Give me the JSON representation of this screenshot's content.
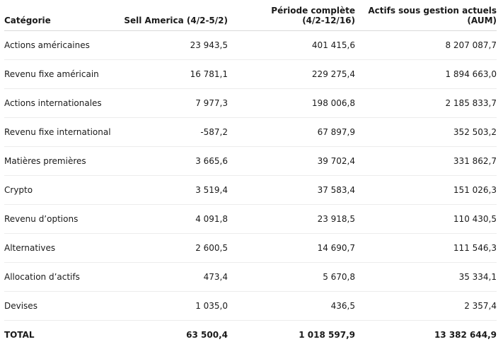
{
  "table": {
    "headers": [
      [
        "Catégorie"
      ],
      [
        "Sell America (4/2-5/2)"
      ],
      [
        "Période complète",
        "(4/2-12/16)"
      ],
      [
        "Actifs sous gestion actuels",
        "(AUM)"
      ]
    ],
    "rows": [
      [
        "Actions américaines",
        "23 943,5",
        "401 415,6",
        "8 207 087,7"
      ],
      [
        "Revenu fixe américain",
        "16 781,1",
        "229 275,4",
        "1 894 663,0"
      ],
      [
        "Actions internationales",
        "7 977,3",
        "198 006,8",
        "2 185 833,7"
      ],
      [
        "Revenu fixe international",
        "-587,2",
        "67 897,9",
        "352 503,2"
      ],
      [
        "Matières premières",
        "3 665,6",
        "39 702,4",
        "331 862,7"
      ],
      [
        "Crypto",
        "3 519,4",
        "37 583,4",
        "151 026,3"
      ],
      [
        "Revenu d’options",
        "4 091,8",
        "23 918,5",
        "110 430,5"
      ],
      [
        "Alternatives",
        "2 600,5",
        "14 690,7",
        "111 546,3"
      ],
      [
        "Allocation d’actifs",
        "473,4",
        "5 670,8",
        "35 334,1"
      ],
      [
        "Devises",
        "1 035,0",
        "436,5",
        "2 357,4"
      ]
    ],
    "total": [
      "TOTAL",
      "63 500,4",
      "1 018 597,9",
      "13 382 644,9"
    ]
  }
}
